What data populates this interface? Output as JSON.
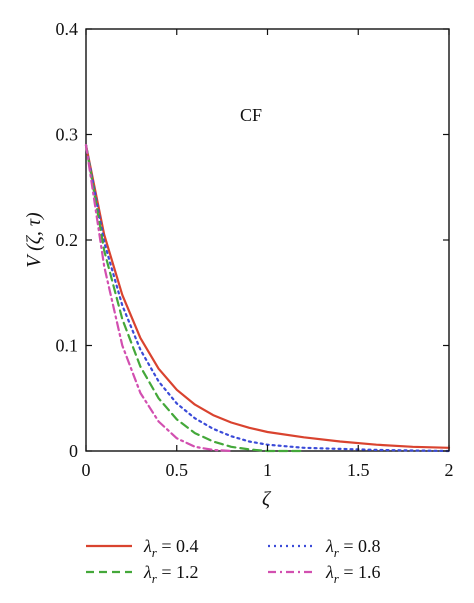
{
  "chart_data": {
    "type": "line",
    "xlabel": "ζ",
    "ylabel": "V (ζ, τ)",
    "annotation": "CF",
    "xlim": [
      0,
      2
    ],
    "ylim": [
      0,
      0.4
    ],
    "x_ticks": [
      "0",
      "0.5",
      "1",
      "1.5",
      "2"
    ],
    "y_ticks": [
      "0",
      "0.1",
      "0.2",
      "0.3",
      "0.4"
    ],
    "grid": false,
    "legend_position": "bottom, below plot, two columns",
    "legend_symbol": "λ",
    "legend_subscript": "r",
    "series": [
      {
        "name": "λr = 0.4",
        "param": "0.4",
        "color": "#d9432f",
        "style": "solid",
        "x": [
          0,
          0.1,
          0.2,
          0.3,
          0.4,
          0.5,
          0.6,
          0.7,
          0.8,
          0.9,
          1.0,
          1.2,
          1.4,
          1.6,
          1.8,
          2.0
        ],
        "y": [
          0.29,
          0.205,
          0.148,
          0.107,
          0.078,
          0.058,
          0.044,
          0.034,
          0.027,
          0.022,
          0.018,
          0.013,
          0.009,
          0.006,
          0.004,
          0.003
        ]
      },
      {
        "name": "λr = 0.8",
        "param": "0.8",
        "color": "#3b4bd8",
        "style": "dotted",
        "x": [
          0,
          0.1,
          0.2,
          0.3,
          0.4,
          0.5,
          0.6,
          0.7,
          0.8,
          0.9,
          1.0,
          1.2,
          1.4,
          1.6,
          1.8,
          2.0
        ],
        "y": [
          0.29,
          0.198,
          0.138,
          0.096,
          0.066,
          0.045,
          0.031,
          0.021,
          0.014,
          0.009,
          0.006,
          0.003,
          0.002,
          0.001,
          0.0005,
          0.0
        ]
      },
      {
        "name": "λr = 1.2",
        "param": "1.2",
        "color": "#44a83a",
        "style": "dashed",
        "x": [
          0,
          0.1,
          0.2,
          0.3,
          0.4,
          0.5,
          0.6,
          0.7,
          0.8,
          0.9,
          1.0,
          1.2
        ],
        "y": [
          0.29,
          0.19,
          0.125,
          0.08,
          0.05,
          0.03,
          0.017,
          0.009,
          0.004,
          0.0015,
          0.0,
          0.0
        ]
      },
      {
        "name": "λr = 1.6",
        "param": "1.6",
        "color": "#d24fb0",
        "style": "dashdot",
        "x": [
          0,
          0.1,
          0.2,
          0.3,
          0.4,
          0.5,
          0.6,
          0.7,
          0.8
        ],
        "y": [
          0.29,
          0.175,
          0.1,
          0.055,
          0.028,
          0.012,
          0.004,
          0.001,
          0.0
        ]
      }
    ]
  }
}
